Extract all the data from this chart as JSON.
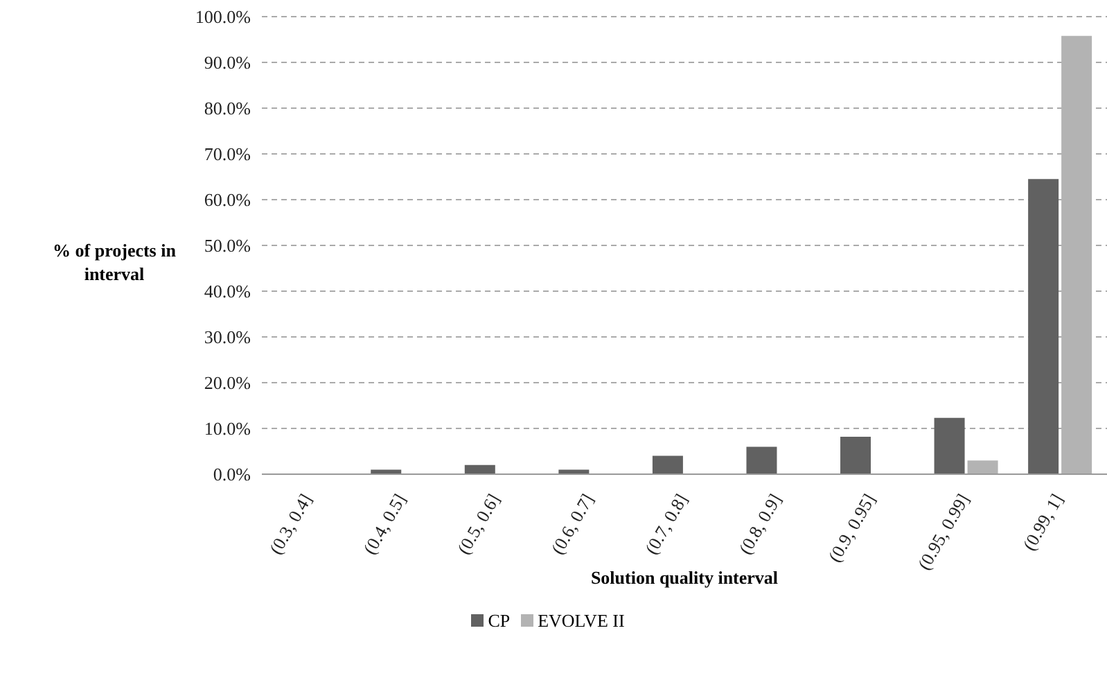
{
  "chart_data": {
    "type": "bar",
    "xlabel": "Solution quality interval",
    "ylabel": "% of projects in interval",
    "categories": [
      "(0.3, 0.4]",
      "(0.4, 0.5]",
      "(0.5, 0.6]",
      "(0.6, 0.7]",
      "(0.7, 0.8]",
      "(0.8, 0.9]",
      "(0.9, 0.95]",
      "(0.95, 0.99]",
      "(0.99, 1]"
    ],
    "series": [
      {
        "name": "CP",
        "color": "#616161",
        "values": [
          0,
          1.0,
          2.0,
          1.0,
          4.0,
          6.0,
          8.2,
          12.3,
          64.5
        ]
      },
      {
        "name": "EVOLVE II",
        "color": "#b3b3b3",
        "values": [
          0,
          0,
          0,
          0,
          0,
          0,
          0,
          3.0,
          95.8
        ]
      }
    ],
    "ylim": [
      0,
      100
    ],
    "yticks": [
      {
        "value": 0,
        "label": "0.0%"
      },
      {
        "value": 10,
        "label": "10.0%"
      },
      {
        "value": 20,
        "label": "20.0%"
      },
      {
        "value": 30,
        "label": "30.0%"
      },
      {
        "value": 40,
        "label": "40.0%"
      },
      {
        "value": 50,
        "label": "50.0%"
      },
      {
        "value": 60,
        "label": "60.0%"
      },
      {
        "value": 70,
        "label": "70.0%"
      },
      {
        "value": 80,
        "label": "80.0%"
      },
      {
        "value": 90,
        "label": "90.0%"
      },
      {
        "value": 100,
        "label": "100.0%"
      }
    ],
    "grid": "y",
    "legend": "bottom"
  }
}
